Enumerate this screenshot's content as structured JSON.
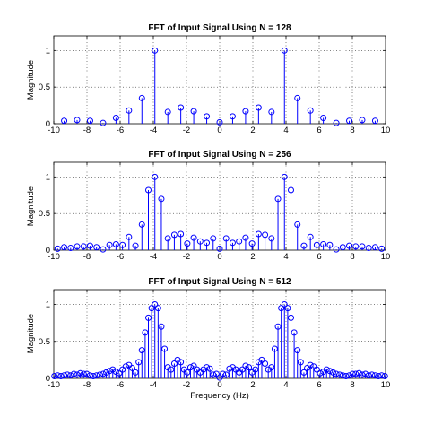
{
  "chart_data": [
    {
      "type": "stem",
      "title": "FFT of Input Signal Using N = 128",
      "xlabel": "",
      "ylabel": "Magnitude",
      "xlim": [
        -10,
        10
      ],
      "ylim": [
        0,
        1.2
      ],
      "xticks": [
        -10,
        -8,
        -6,
        -4,
        -2,
        0,
        2,
        4,
        6,
        8,
        10
      ],
      "yticks": [
        0,
        0.5,
        1
      ],
      "grid": true,
      "color": "#0000ff",
      "x": [
        -9.375,
        -8.594,
        -7.813,
        -7.031,
        -6.25,
        -5.469,
        -4.688,
        -3.906,
        -3.125,
        -2.344,
        -1.563,
        -0.781,
        0,
        0.781,
        1.563,
        2.344,
        3.125,
        3.906,
        4.688,
        5.469,
        6.25,
        7.031,
        7.813,
        8.594,
        9.375
      ],
      "y": [
        0.04,
        0.05,
        0.04,
        0.01,
        0.08,
        0.18,
        0.35,
        1.0,
        0.16,
        0.22,
        0.17,
        0.1,
        0.02,
        0.1,
        0.17,
        0.22,
        0.16,
        1.0,
        0.35,
        0.18,
        0.08,
        0.01,
        0.04,
        0.05,
        0.04
      ]
    },
    {
      "type": "stem",
      "title": "FFT of Input Signal Using N = 256",
      "xlabel": "",
      "ylabel": "Magnitude",
      "xlim": [
        -10,
        10
      ],
      "ylim": [
        0,
        1.2
      ],
      "xticks": [
        -10,
        -8,
        -6,
        -4,
        -2,
        0,
        2,
        4,
        6,
        8,
        10
      ],
      "yticks": [
        0,
        0.5,
        1
      ],
      "grid": true,
      "color": "#0000ff",
      "x": [
        -9.766,
        -9.375,
        -8.984,
        -8.594,
        -8.203,
        -7.813,
        -7.422,
        -7.031,
        -6.641,
        -6.25,
        -5.859,
        -5.469,
        -5.078,
        -4.688,
        -4.297,
        -3.906,
        -3.516,
        -3.125,
        -2.734,
        -2.344,
        -1.953,
        -1.563,
        -1.172,
        -0.781,
        -0.391,
        0,
        0.391,
        0.781,
        1.172,
        1.563,
        1.953,
        2.344,
        2.734,
        3.125,
        3.516,
        3.906,
        4.297,
        4.688,
        5.078,
        5.469,
        5.859,
        6.25,
        6.641,
        7.031,
        7.422,
        7.813,
        8.203,
        8.594,
        8.984,
        9.375,
        9.766
      ],
      "y": [
        0.02,
        0.04,
        0.03,
        0.05,
        0.05,
        0.06,
        0.04,
        0.01,
        0.07,
        0.08,
        0.07,
        0.18,
        0.06,
        0.35,
        0.82,
        1.0,
        0.7,
        0.16,
        0.21,
        0.22,
        0.09,
        0.17,
        0.12,
        0.1,
        0.16,
        0.02,
        0.16,
        0.1,
        0.12,
        0.17,
        0.09,
        0.22,
        0.21,
        0.16,
        0.7,
        1.0,
        0.82,
        0.35,
        0.06,
        0.18,
        0.07,
        0.08,
        0.07,
        0.01,
        0.04,
        0.06,
        0.05,
        0.05,
        0.03,
        0.04,
        0.02
      ]
    },
    {
      "type": "stem",
      "title": "FFT of Input Signal Using N = 512",
      "xlabel": "Frequency (Hz)",
      "ylabel": "Magnitude",
      "xlim": [
        -10,
        10
      ],
      "ylim": [
        0,
        1.2
      ],
      "xticks": [
        -10,
        -8,
        -6,
        -4,
        -2,
        0,
        2,
        4,
        6,
        8,
        10
      ],
      "yticks": [
        0,
        0.5,
        1
      ],
      "grid": true,
      "color": "#0000ff",
      "x": [
        -9.961,
        -9.766,
        -9.57,
        -9.375,
        -9.18,
        -8.984,
        -8.789,
        -8.594,
        -8.398,
        -8.203,
        -8.008,
        -7.813,
        -7.617,
        -7.422,
        -7.227,
        -7.031,
        -6.836,
        -6.641,
        -6.445,
        -6.25,
        -6.055,
        -5.859,
        -5.664,
        -5.469,
        -5.273,
        -5.078,
        -4.883,
        -4.688,
        -4.492,
        -4.297,
        -4.102,
        -3.906,
        -3.711,
        -3.516,
        -3.32,
        -3.125,
        -2.93,
        -2.734,
        -2.539,
        -2.344,
        -2.148,
        -1.953,
        -1.758,
        -1.563,
        -1.367,
        -1.172,
        -0.977,
        -0.781,
        -0.586,
        -0.391,
        -0.195,
        0,
        0.195,
        0.391,
        0.586,
        0.781,
        0.977,
        1.172,
        1.367,
        1.563,
        1.758,
        1.953,
        2.148,
        2.344,
        2.539,
        2.734,
        2.93,
        3.125,
        3.32,
        3.516,
        3.711,
        3.906,
        4.102,
        4.297,
        4.492,
        4.688,
        4.883,
        5.078,
        5.273,
        5.469,
        5.664,
        5.859,
        6.055,
        6.25,
        6.445,
        6.641,
        6.836,
        7.031,
        7.227,
        7.422,
        7.617,
        7.813,
        8.008,
        8.203,
        8.398,
        8.594,
        8.789,
        8.984,
        9.18,
        9.375,
        9.57,
        9.766,
        9.961
      ],
      "y": [
        0.03,
        0.04,
        0.03,
        0.04,
        0.05,
        0.04,
        0.06,
        0.05,
        0.07,
        0.06,
        0.06,
        0.04,
        0.03,
        0.04,
        0.05,
        0.06,
        0.08,
        0.1,
        0.12,
        0.09,
        0.07,
        0.12,
        0.16,
        0.18,
        0.14,
        0.08,
        0.22,
        0.38,
        0.62,
        0.82,
        0.95,
        1.0,
        0.95,
        0.7,
        0.4,
        0.15,
        0.12,
        0.2,
        0.25,
        0.22,
        0.12,
        0.08,
        0.15,
        0.17,
        0.12,
        0.08,
        0.12,
        0.15,
        0.13,
        0.05,
        0.06,
        0.01,
        0.06,
        0.05,
        0.13,
        0.15,
        0.12,
        0.08,
        0.12,
        0.17,
        0.15,
        0.08,
        0.12,
        0.22,
        0.25,
        0.2,
        0.12,
        0.15,
        0.4,
        0.7,
        0.95,
        1.0,
        0.95,
        0.82,
        0.62,
        0.38,
        0.22,
        0.08,
        0.14,
        0.18,
        0.16,
        0.12,
        0.07,
        0.09,
        0.12,
        0.1,
        0.08,
        0.06,
        0.05,
        0.04,
        0.03,
        0.04,
        0.06,
        0.06,
        0.07,
        0.05,
        0.06,
        0.04,
        0.05,
        0.04,
        0.03,
        0.04,
        0.03
      ]
    }
  ]
}
